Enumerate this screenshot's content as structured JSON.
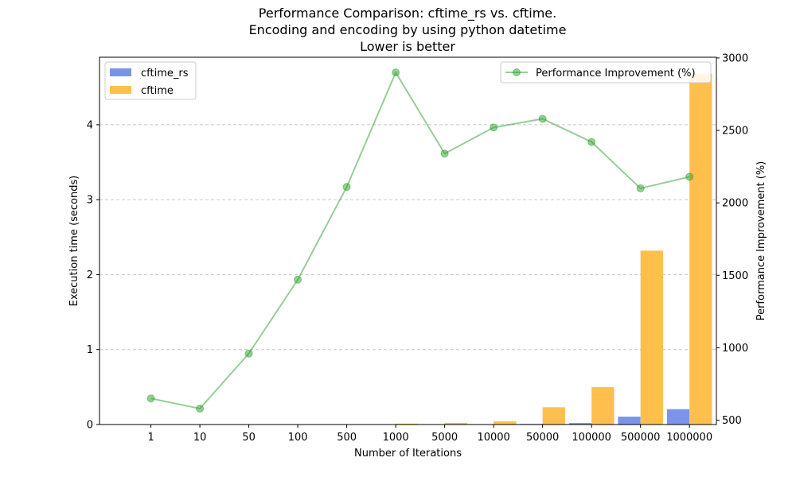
{
  "chart_data": {
    "type": "bar",
    "title_lines": [
      "Performance Comparison: cftime_rs vs. cftime.",
      "Encoding and encoding by using python datetime",
      "Lower is better"
    ],
    "xlabel": "Number of Iterations",
    "ylabel": "Execution time (seconds)",
    "y2label": "Performance Improvement (%)",
    "categories": [
      "1",
      "10",
      "50",
      "100",
      "500",
      "1000",
      "5000",
      "10000",
      "50000",
      "100000",
      "500000",
      "1000000"
    ],
    "ylim": [
      0,
      4.9
    ],
    "yticks": [
      0,
      1,
      2,
      3,
      4
    ],
    "y2lim": [
      470,
      3005
    ],
    "y2ticks": [
      500,
      1000,
      1500,
      2000,
      2500,
      3000
    ],
    "grid": "horizontal dashed",
    "series": [
      {
        "name": "cftime_rs",
        "kind": "bar",
        "color": "#7b94e9",
        "values": [
          1e-05,
          1e-05,
          2e-05,
          4e-05,
          0.0002,
          0.0004,
          0.0009,
          0.0017,
          0.008,
          0.02,
          0.105,
          0.205
        ]
      },
      {
        "name": "cftime",
        "kind": "bar",
        "color": "#ffbf4d",
        "values": [
          0.0001,
          0.0001,
          0.0003,
          0.0006,
          0.003,
          0.012,
          0.022,
          0.042,
          0.23,
          0.5,
          2.32,
          4.68
        ]
      },
      {
        "name": "Performance Improvement (%)",
        "kind": "line",
        "axis": "right",
        "color": "#2ca02c",
        "values": [
          650,
          580,
          960,
          1470,
          2110,
          2900,
          2340,
          2520,
          2580,
          2420,
          2100,
          2180
        ]
      }
    ],
    "legend_left": [
      "cftime_rs",
      "cftime"
    ],
    "legend_right": [
      "Performance Improvement (%)"
    ],
    "legend_left_position": "top-left",
    "legend_right_position": "top-right"
  }
}
